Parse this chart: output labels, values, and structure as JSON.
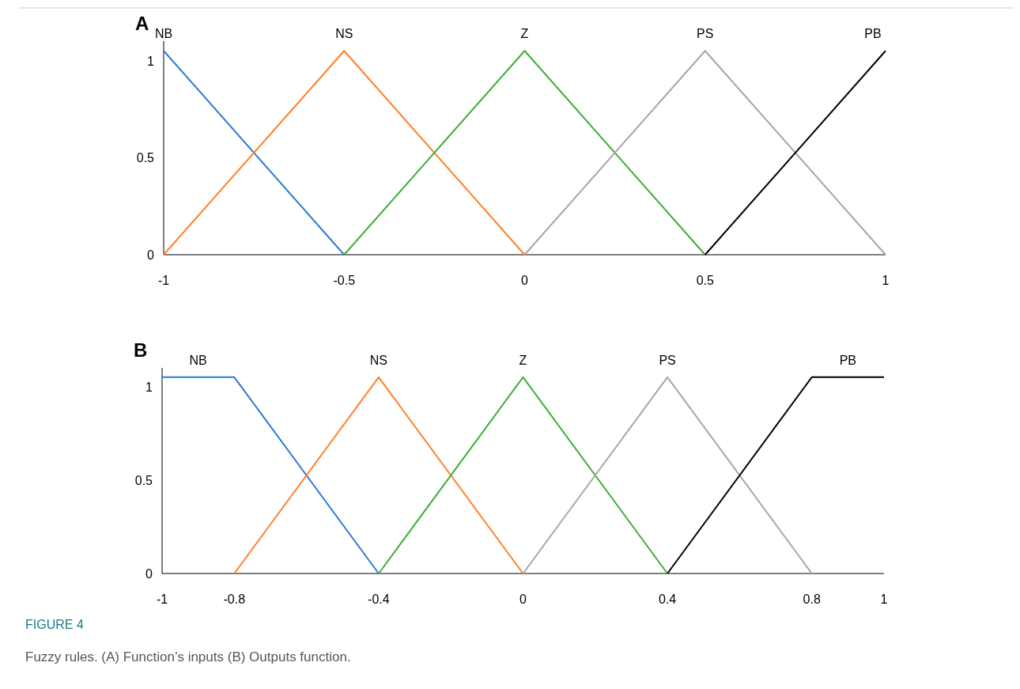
{
  "chart_data": [
    {
      "type": "line",
      "title": "A",
      "xlim": [
        -1,
        1
      ],
      "xticks": [
        -1,
        -0.5,
        0,
        0.5,
        1
      ],
      "ylim": [
        0,
        1.1
      ],
      "yticks": [
        0,
        0.5,
        1
      ],
      "grid": false,
      "marker": "none",
      "line_style": "solid",
      "series": [
        {
          "name": "NB",
          "color": "#2a7ad4",
          "x": [
            -1,
            -0.5
          ],
          "values": [
            1.05,
            0
          ]
        },
        {
          "name": "NS",
          "color": "#ff7f27",
          "x": [
            -1,
            -0.5,
            0
          ],
          "values": [
            0,
            1.05,
            0
          ]
        },
        {
          "name": "Z",
          "color": "#3caf34",
          "x": [
            -0.5,
            0,
            0.5
          ],
          "values": [
            0,
            1.05,
            0
          ]
        },
        {
          "name": "PS",
          "color": "#a6a6a6",
          "x": [
            0,
            0.5,
            1
          ],
          "values": [
            0,
            1.05,
            0
          ]
        },
        {
          "name": "PB",
          "color": "#000000",
          "x": [
            0.5,
            1
          ],
          "values": [
            0,
            1.05
          ]
        }
      ]
    },
    {
      "type": "line",
      "title": "B",
      "xlim": [
        -1,
        1
      ],
      "xticks": [
        -1,
        -0.8,
        -0.4,
        0,
        0.4,
        0.8,
        1
      ],
      "ylim": [
        0,
        1.1
      ],
      "yticks": [
        0,
        0.5,
        1
      ],
      "grid": false,
      "marker": "none",
      "line_style": "solid",
      "annotations": [
        "FIGURE 4",
        "Fuzzy rules. (A) Function’s inputs (B) Outputs function."
      ],
      "series": [
        {
          "name": "NB",
          "color": "#2a7ad4",
          "x": [
            -1,
            -0.8,
            -0.4
          ],
          "values": [
            1.05,
            1.05,
            0
          ]
        },
        {
          "name": "NS",
          "color": "#ff7f27",
          "x": [
            -0.8,
            -0.4,
            0
          ],
          "values": [
            0,
            1.05,
            0
          ]
        },
        {
          "name": "Z",
          "color": "#3caf34",
          "x": [
            -0.4,
            0,
            0.4
          ],
          "values": [
            0,
            1.05,
            0
          ]
        },
        {
          "name": "PS",
          "color": "#a6a6a6",
          "x": [
            0,
            0.4,
            0.8
          ],
          "values": [
            0,
            1.05,
            0
          ]
        },
        {
          "name": "PB",
          "color": "#000000",
          "x": [
            0.4,
            0.8,
            1
          ],
          "values": [
            0,
            1.05,
            1.05
          ]
        }
      ]
    }
  ]
}
